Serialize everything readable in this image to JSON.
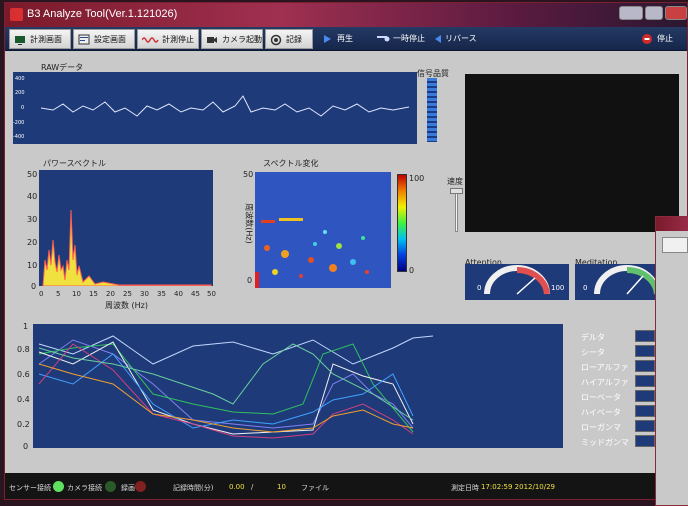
{
  "window": {
    "title": "B3 Analyze Tool(Ver.1.121026)"
  },
  "toolbar": {
    "measure_screen": "計測画面",
    "settings_screen": "設定画面",
    "stop_measure": "計測停止",
    "camera_start": "カメラ起動",
    "record": "記録",
    "play": "再生",
    "pause": "一時停止",
    "reverse": "リバース",
    "stop": "停止"
  },
  "raw": {
    "label": "RAWデータ",
    "yticks": [
      "400",
      "200",
      "0",
      "-200",
      "-400"
    ]
  },
  "signal_quality": {
    "label": "信号品質"
  },
  "power_spectrum": {
    "label": "パワースペクトル",
    "yticks": [
      "50",
      "40",
      "30",
      "20",
      "10",
      "0"
    ],
    "xticks": [
      "0",
      "5",
      "10",
      "15",
      "20",
      "25",
      "30",
      "35",
      "40",
      "45",
      "50"
    ],
    "xlabel": "周波数 (Hz)"
  },
  "spectrum_change": {
    "label": "スペクトル変化",
    "ylabel": "周波数(Hz)",
    "ytop": "50",
    "yzero": "0",
    "scale_max": "100",
    "scale_min": "0"
  },
  "speed": {
    "label": "速度"
  },
  "attention": {
    "label": "Attention",
    "min": "0",
    "max": "100"
  },
  "meditation": {
    "label": "Meditation",
    "min": "0"
  },
  "band_chart": {
    "yticks": [
      "1",
      "0.8",
      "0.6",
      "0.4",
      "0.2",
      "0"
    ]
  },
  "legend": [
    "デルタ",
    "シータ",
    "ローアルファ",
    "ハイアルファ",
    "ローベータ",
    "ハイベータ",
    "ローガンマ",
    "ミッドガンマ"
  ],
  "status": {
    "sensor": "センサー接続",
    "camera": "カメラ接続",
    "recording": "録画",
    "record_time_label": "記録時間(分)",
    "record_time_value": "0.00",
    "slash": "/",
    "record_time_total": "10",
    "file_label": "ファイル",
    "measure_time_label": "測定日時",
    "measure_time_value": "17:02:59 2012/10/29"
  },
  "colors": {
    "plot_bg": "#1f3a78",
    "toolbar": "#1a2c54",
    "panel": "#c9c9c9"
  }
}
